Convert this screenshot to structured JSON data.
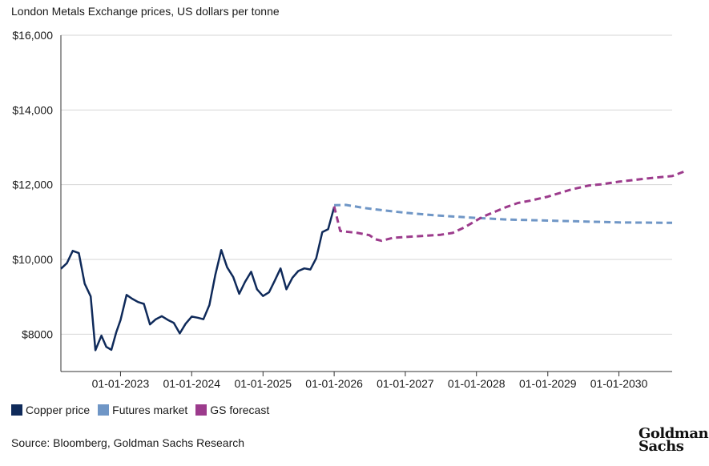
{
  "header": {
    "subtitle": "London Metals Exchange prices, US dollars per tonne"
  },
  "chart_data": {
    "type": "line",
    "title": "",
    "ylabel": "",
    "xlabel": "",
    "ylim": [
      7000,
      16000
    ],
    "y_ticks": [
      8000,
      10000,
      12000,
      14000,
      16000
    ],
    "y_tick_labels": [
      "$8000",
      "$10,000",
      "$12,000",
      "$14,000",
      "$16,000"
    ],
    "x_range": [
      "2022-03-01",
      "2030-10-01"
    ],
    "x_ticks": [
      "2023-01-01",
      "2024-01-01",
      "2025-01-01",
      "2026-01-01",
      "2027-01-01",
      "2028-01-01",
      "2029-01-01",
      "2030-01-01"
    ],
    "x_tick_labels": [
      "01-01-2023",
      "01-01-2024",
      "01-01-2025",
      "01-01-2026",
      "01-01-2027",
      "01-01-2028",
      "01-01-2029",
      "01-01-2030"
    ],
    "grid": true,
    "legend_position": "bottom-left",
    "series": [
      {
        "name": "Copper price",
        "color": "#0f2a5a",
        "dash": "solid",
        "points": [
          [
            "2022-03-01",
            9750
          ],
          [
            "2022-04-01",
            9900
          ],
          [
            "2022-05-01",
            10230
          ],
          [
            "2022-06-01",
            10170
          ],
          [
            "2022-07-01",
            9350
          ],
          [
            "2022-08-01",
            9010
          ],
          [
            "2022-08-25",
            7570
          ],
          [
            "2022-09-25",
            7960
          ],
          [
            "2022-10-20",
            7660
          ],
          [
            "2022-11-15",
            7580
          ],
          [
            "2022-12-10",
            8050
          ],
          [
            "2023-01-01",
            8380
          ],
          [
            "2023-02-01",
            9050
          ],
          [
            "2023-03-01",
            8950
          ],
          [
            "2023-04-01",
            8860
          ],
          [
            "2023-05-01",
            8810
          ],
          [
            "2023-06-01",
            8260
          ],
          [
            "2023-07-01",
            8400
          ],
          [
            "2023-08-01",
            8480
          ],
          [
            "2023-09-01",
            8380
          ],
          [
            "2023-10-01",
            8300
          ],
          [
            "2023-11-01",
            8020
          ],
          [
            "2023-12-01",
            8280
          ],
          [
            "2024-01-01",
            8470
          ],
          [
            "2024-02-01",
            8440
          ],
          [
            "2024-03-01",
            8400
          ],
          [
            "2024-04-01",
            8780
          ],
          [
            "2024-05-01",
            9580
          ],
          [
            "2024-06-01",
            10250
          ],
          [
            "2024-07-01",
            9790
          ],
          [
            "2024-08-01",
            9530
          ],
          [
            "2024-09-01",
            9080
          ],
          [
            "2024-10-01",
            9400
          ],
          [
            "2024-11-01",
            9670
          ],
          [
            "2024-12-01",
            9200
          ],
          [
            "2025-01-01",
            9020
          ],
          [
            "2025-02-01",
            9120
          ],
          [
            "2025-03-01",
            9420
          ],
          [
            "2025-04-01",
            9760
          ],
          [
            "2025-05-01",
            9200
          ],
          [
            "2025-06-01",
            9510
          ],
          [
            "2025-07-01",
            9690
          ],
          [
            "2025-08-01",
            9760
          ],
          [
            "2025-09-01",
            9730
          ],
          [
            "2025-10-01",
            10030
          ],
          [
            "2025-11-01",
            10730
          ],
          [
            "2025-12-01",
            10810
          ],
          [
            "2026-01-01",
            11400
          ]
        ]
      },
      {
        "name": "Futures market",
        "color": "#6f96c6",
        "dash": "dashed",
        "points": [
          [
            "2026-01-01",
            11450
          ],
          [
            "2026-03-01",
            11460
          ],
          [
            "2026-06-01",
            11380
          ],
          [
            "2026-09-01",
            11320
          ],
          [
            "2027-01-01",
            11250
          ],
          [
            "2027-06-01",
            11180
          ],
          [
            "2028-01-01",
            11110
          ],
          [
            "2028-06-01",
            11070
          ],
          [
            "2029-01-01",
            11040
          ],
          [
            "2029-06-01",
            11020
          ],
          [
            "2030-01-01",
            10990
          ],
          [
            "2030-10-01",
            10980
          ]
        ]
      },
      {
        "name": "GS forecast",
        "color": "#9c3b8c",
        "dash": "dashed",
        "points": [
          [
            "2026-01-01",
            11420
          ],
          [
            "2026-02-01",
            10760
          ],
          [
            "2026-05-01",
            10710
          ],
          [
            "2026-07-01",
            10650
          ],
          [
            "2026-08-01",
            10540
          ],
          [
            "2026-09-01",
            10500
          ],
          [
            "2026-11-01",
            10580
          ],
          [
            "2027-03-01",
            10620
          ],
          [
            "2027-07-01",
            10660
          ],
          [
            "2027-09-01",
            10710
          ],
          [
            "2027-11-01",
            10860
          ],
          [
            "2028-02-01",
            11140
          ],
          [
            "2028-06-01",
            11400
          ],
          [
            "2028-08-01",
            11510
          ],
          [
            "2028-10-01",
            11570
          ],
          [
            "2029-01-01",
            11680
          ],
          [
            "2029-05-01",
            11870
          ],
          [
            "2029-08-01",
            11980
          ],
          [
            "2029-10-01",
            12010
          ],
          [
            "2030-01-01",
            12080
          ],
          [
            "2030-06-01",
            12170
          ],
          [
            "2030-10-01",
            12230
          ],
          [
            "2030-12-01",
            12350
          ]
        ]
      }
    ]
  },
  "legend": {
    "items": [
      {
        "label": "Copper price",
        "color": "#0f2a5a"
      },
      {
        "label": "Futures market",
        "color": "#6f96c6"
      },
      {
        "label": "GS forecast",
        "color": "#9c3b8c"
      }
    ]
  },
  "footer": {
    "source": "Source: Bloomberg, Goldman Sachs Research",
    "logo_line1": "Goldman",
    "logo_line2": "Sachs"
  }
}
